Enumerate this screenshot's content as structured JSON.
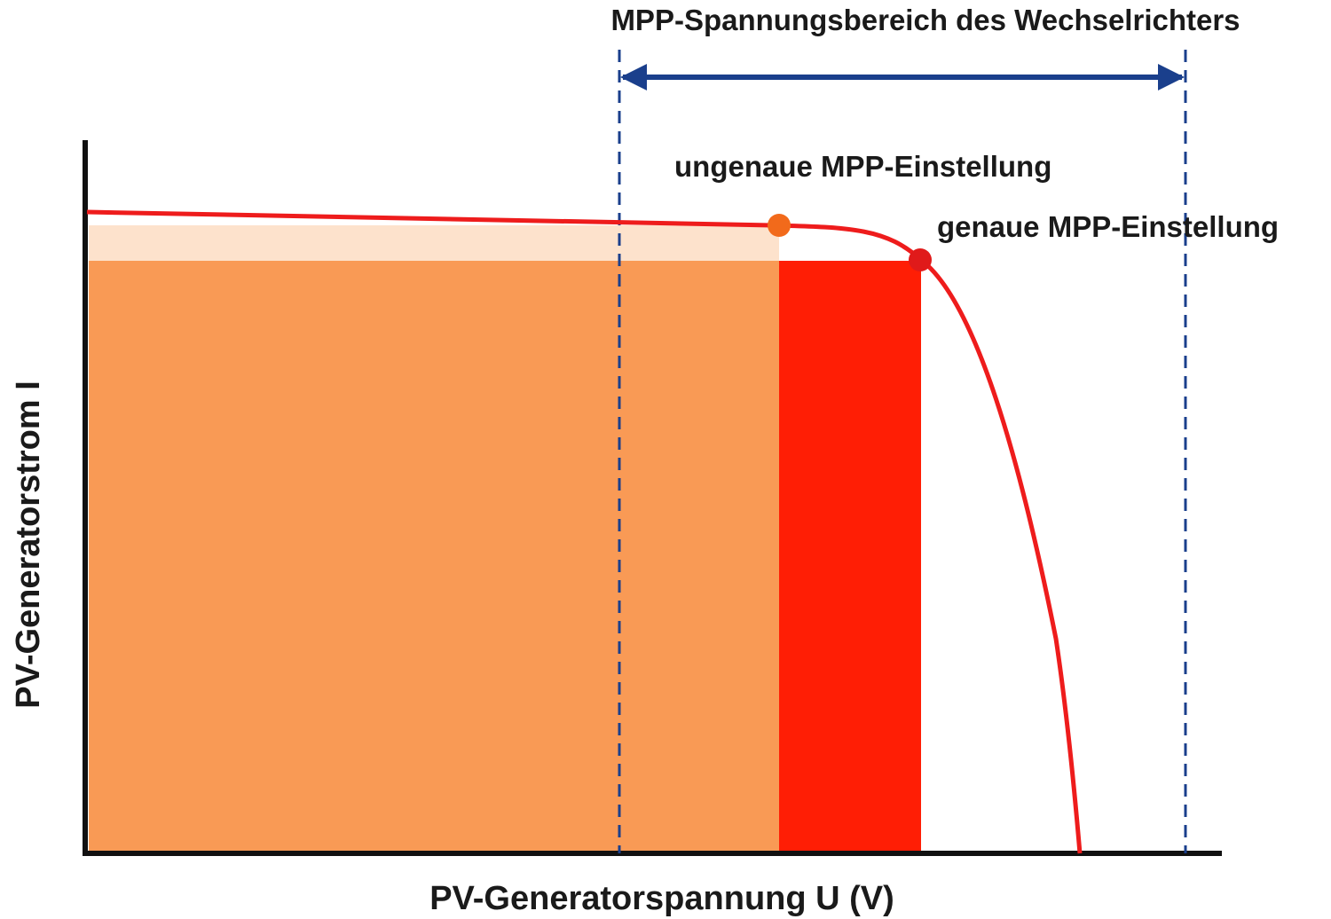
{
  "labels": {
    "range": "MPP-Spannungsbereich des Wechselrichters",
    "inaccurate": "ungenaue MPP-Einstellung",
    "accurate": "genaue MPP-Einstellung",
    "y_axis": "PV-Generatorstrom I",
    "x_axis": "PV-Generatorspannung U (V)"
  },
  "colors": {
    "curve": "#ee1c1c",
    "area_inaccurate": "#f99a55",
    "area_accurate": "#ff1e05",
    "area_light": "#fde2cc",
    "point_inaccurate": "#f26a1b",
    "point_accurate": "#e01a1a",
    "range_marker": "#1a3f8c",
    "axis": "#111111"
  },
  "icons": {
    "range_arrow": "double-headed-arrow"
  }
}
